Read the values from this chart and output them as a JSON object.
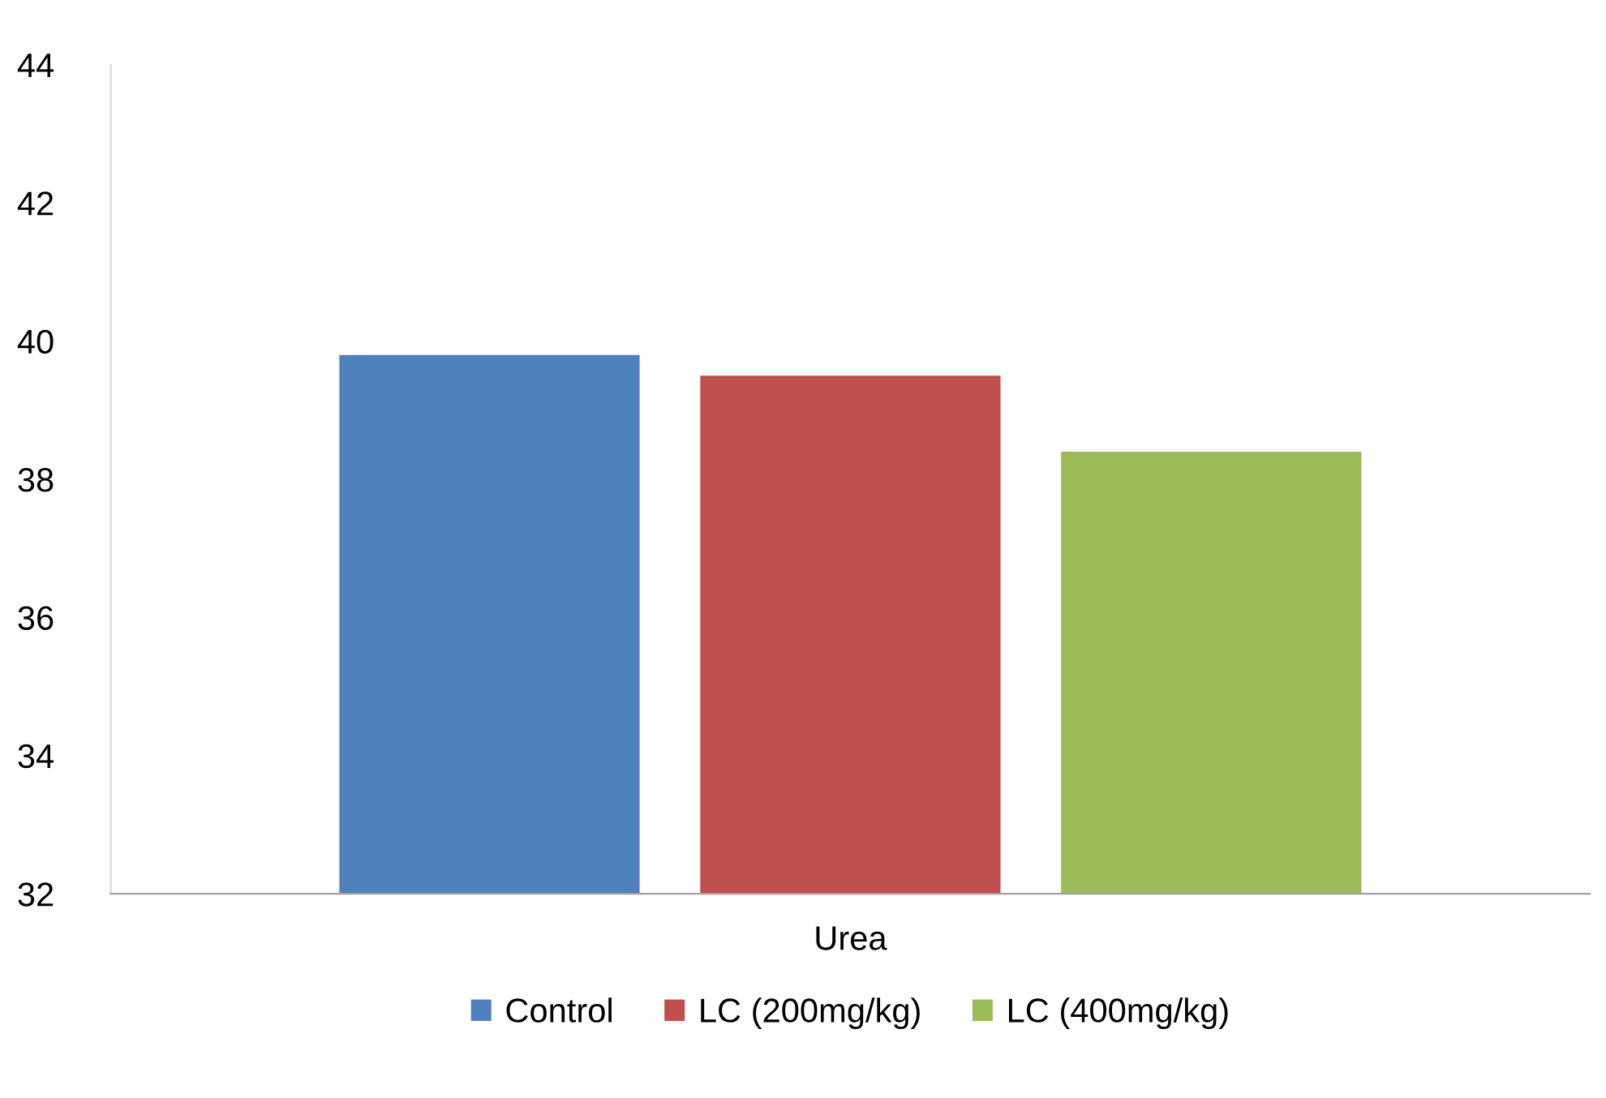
{
  "chart_data": {
    "type": "bar",
    "categories": [
      "Urea"
    ],
    "series": [
      {
        "name": "Control",
        "color": "#4f81bd",
        "values": [
          39.8
        ]
      },
      {
        "name": "LC (200mg/kg)",
        "color": "#c0504d",
        "values": [
          39.5
        ]
      },
      {
        "name": "LC (400mg/kg)",
        "color": "#9bbb59",
        "values": [
          38.4
        ]
      }
    ],
    "ylim": [
      32,
      44
    ],
    "yticks": [
      32,
      34,
      36,
      38,
      40,
      42,
      44
    ],
    "grid": false,
    "legend": "bottom"
  }
}
